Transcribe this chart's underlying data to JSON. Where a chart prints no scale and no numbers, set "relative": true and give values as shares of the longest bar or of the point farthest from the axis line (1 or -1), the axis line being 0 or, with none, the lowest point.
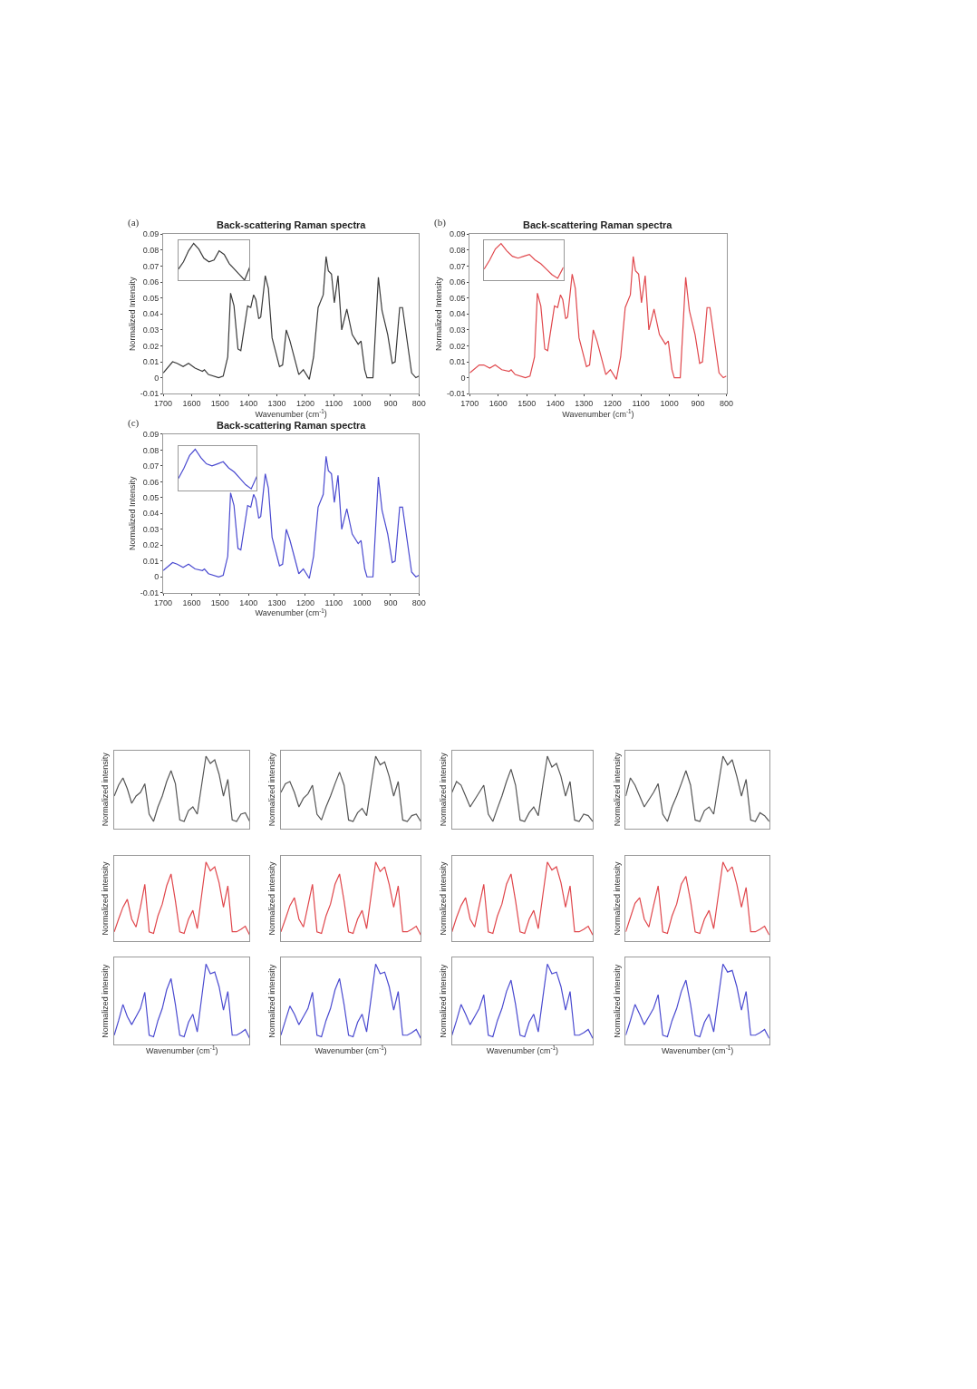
{
  "chart_data": [
    {
      "type": "line",
      "title": "Back-scattering Raman spectra",
      "xlabel": "Wavenumber (cm$^{-1}$)",
      "ylabel": "Normalized Intensity",
      "annotations": [
        "(a)"
      ],
      "color": "#3a3a3a",
      "x": [
        1700,
        1667,
        1651,
        1630,
        1611,
        1588,
        1562,
        1555,
        1541,
        1505,
        1489,
        1473,
        1463,
        1451,
        1437,
        1427,
        1403,
        1392,
        1382,
        1374,
        1364,
        1357,
        1341,
        1330,
        1317,
        1291,
        1280,
        1267,
        1254,
        1223,
        1207,
        1186,
        1171,
        1155,
        1137,
        1127,
        1119,
        1108,
        1098,
        1085,
        1072,
        1054,
        1035,
        1014,
        1004,
        991,
        983,
        962,
        943,
        930,
        910,
        894,
        884,
        868,
        858,
        826,
        811,
        800
      ],
      "values": [
        0.003,
        0.01,
        0.009,
        0.007,
        0.009,
        0.006,
        0.004,
        0.005,
        0.002,
        0.0,
        0.001,
        0.013,
        0.053,
        0.045,
        0.018,
        0.017,
        0.045,
        0.044,
        0.052,
        0.049,
        0.037,
        0.038,
        0.064,
        0.056,
        0.025,
        0.007,
        0.008,
        0.03,
        0.023,
        0.002,
        0.005,
        -0.001,
        0.013,
        0.044,
        0.052,
        0.076,
        0.067,
        0.065,
        0.047,
        0.064,
        0.03,
        0.043,
        0.027,
        0.021,
        0.023,
        0.005,
        0.0,
        0.0,
        0.063,
        0.042,
        0.027,
        0.009,
        0.01,
        0.044,
        0.044,
        0.003,
        0.0,
        0.001
      ],
      "xlim": [
        1700,
        800
      ],
      "xticks": [
        1700,
        1600,
        1500,
        1400,
        1300,
        1200,
        1100,
        1000,
        900,
        800
      ],
      "ylim": [
        -0.01,
        0.09
      ],
      "yticks": [
        -0.01,
        0,
        0.01,
        0.02,
        0.03,
        0.04,
        0.05,
        0.06,
        0.07,
        0.08,
        0.09
      ]
    },
    {
      "type": "line",
      "relative": true,
      "color": "#3a3a3a",
      "categories": [
        null,
        null,
        null,
        null,
        null,
        null,
        null,
        null,
        null,
        null,
        null,
        null,
        null,
        null,
        null
      ],
      "values": [
        0.3,
        0.5,
        0.8,
        1.0,
        0.85,
        0.6,
        0.5,
        0.55,
        0.8,
        0.7,
        0.45,
        0.3,
        0.15,
        0.0,
        0.35
      ]
    },
    {
      "type": "line",
      "title": "Back-scattering Raman spectra",
      "xlabel": "Wavenumber (cm$^{-1}$)",
      "ylabel": "Normalized Intensity",
      "annotations": [
        "(b)"
      ],
      "color": "#e0474c",
      "x": [
        1700,
        1667,
        1651,
        1630,
        1611,
        1588,
        1562,
        1555,
        1541,
        1505,
        1489,
        1473,
        1463,
        1451,
        1437,
        1427,
        1403,
        1392,
        1382,
        1374,
        1364,
        1357,
        1341,
        1330,
        1317,
        1291,
        1280,
        1267,
        1254,
        1223,
        1207,
        1186,
        1171,
        1155,
        1137,
        1127,
        1119,
        1108,
        1098,
        1085,
        1072,
        1054,
        1035,
        1014,
        1004,
        991,
        983,
        962,
        943,
        930,
        910,
        894,
        884,
        868,
        858,
        826,
        811,
        800
      ],
      "values": [
        0.003,
        0.008,
        0.008,
        0.006,
        0.008,
        0.005,
        0.004,
        0.005,
        0.002,
        0.0,
        0.001,
        0.013,
        0.053,
        0.045,
        0.018,
        0.017,
        0.045,
        0.044,
        0.052,
        0.049,
        0.037,
        0.038,
        0.065,
        0.056,
        0.025,
        0.007,
        0.008,
        0.03,
        0.023,
        0.002,
        0.005,
        -0.001,
        0.013,
        0.044,
        0.052,
        0.076,
        0.067,
        0.065,
        0.047,
        0.064,
        0.03,
        0.043,
        0.027,
        0.021,
        0.023,
        0.005,
        0.0,
        0.0,
        0.063,
        0.042,
        0.027,
        0.009,
        0.01,
        0.044,
        0.044,
        0.003,
        0.0,
        0.001
      ],
      "xlim": [
        1700,
        800
      ],
      "xticks": [
        1700,
        1600,
        1500,
        1400,
        1300,
        1200,
        1100,
        1000,
        900,
        800
      ],
      "ylim": [
        -0.01,
        0.09
      ],
      "yticks": [
        -0.01,
        0,
        0.01,
        0.02,
        0.03,
        0.04,
        0.05,
        0.06,
        0.07,
        0.08,
        0.09
      ]
    },
    {
      "type": "line",
      "relative": true,
      "color": "#e0474c",
      "categories": [
        null,
        null,
        null,
        null,
        null,
        null,
        null,
        null,
        null,
        null,
        null,
        null,
        null,
        null,
        null
      ],
      "values": [
        0.3,
        0.55,
        0.85,
        1.0,
        0.8,
        0.65,
        0.6,
        0.65,
        0.7,
        0.55,
        0.45,
        0.3,
        0.15,
        0.05,
        0.35
      ]
    },
    {
      "type": "line",
      "title": "Back-scattering Raman spectra",
      "xlabel": "Wavenumber (cm$^{-1}$)",
      "ylabel": "Normalized Intensity",
      "annotations": [
        "(c)"
      ],
      "color": "#4a4ad0",
      "x": [
        1700,
        1667,
        1651,
        1630,
        1611,
        1588,
        1562,
        1555,
        1541,
        1505,
        1489,
        1473,
        1463,
        1451,
        1437,
        1427,
        1403,
        1392,
        1382,
        1374,
        1364,
        1357,
        1341,
        1330,
        1317,
        1291,
        1280,
        1267,
        1254,
        1223,
        1207,
        1186,
        1171,
        1155,
        1137,
        1127,
        1119,
        1108,
        1098,
        1085,
        1072,
        1054,
        1035,
        1014,
        1004,
        991,
        983,
        962,
        943,
        930,
        910,
        894,
        884,
        868,
        858,
        826,
        811,
        800
      ],
      "values": [
        0.004,
        0.009,
        0.008,
        0.006,
        0.008,
        0.005,
        0.004,
        0.005,
        0.002,
        0.0,
        0.001,
        0.013,
        0.053,
        0.045,
        0.018,
        0.017,
        0.045,
        0.044,
        0.052,
        0.049,
        0.037,
        0.038,
        0.065,
        0.056,
        0.025,
        0.007,
        0.008,
        0.03,
        0.023,
        0.002,
        0.005,
        -0.001,
        0.013,
        0.044,
        0.052,
        0.076,
        0.067,
        0.065,
        0.047,
        0.064,
        0.03,
        0.043,
        0.027,
        0.021,
        0.023,
        0.005,
        0.0,
        0.0,
        0.063,
        0.042,
        0.027,
        0.009,
        0.01,
        0.044,
        0.044,
        0.003,
        0.0,
        0.001
      ],
      "xlim": [
        1700,
        800
      ],
      "xticks": [
        1700,
        1600,
        1500,
        1400,
        1300,
        1200,
        1100,
        1000,
        900,
        800
      ],
      "ylim": [
        -0.01,
        0.09
      ],
      "yticks": [
        -0.01,
        0,
        0.01,
        0.02,
        0.03,
        0.04,
        0.05,
        0.06,
        0.07,
        0.08,
        0.09
      ]
    },
    {
      "type": "line",
      "relative": true,
      "color": "#4a4ad0",
      "categories": [
        null,
        null,
        null,
        null,
        null,
        null,
        null,
        null,
        null,
        null,
        null,
        null,
        null,
        null,
        null
      ],
      "values": [
        0.3,
        0.55,
        0.85,
        1.0,
        0.8,
        0.65,
        0.6,
        0.65,
        0.7,
        0.55,
        0.45,
        0.3,
        0.15,
        0.05,
        0.35
      ]
    },
    {
      "type": "line",
      "relative": true,
      "ylabel": "Normalized intensity",
      "color": "#555555",
      "categories": [
        null,
        null,
        null,
        null,
        null,
        null,
        null,
        null,
        null,
        null,
        null,
        null,
        null,
        null,
        null,
        null,
        null,
        null,
        null,
        null,
        null,
        null,
        null,
        null,
        null,
        null,
        null,
        null,
        null,
        null,
        null,
        null
      ],
      "values": [
        0.45,
        0.6,
        0.7,
        0.55,
        0.35,
        0.45,
        0.5,
        0.62,
        0.2,
        0.1,
        0.3,
        0.45,
        0.65,
        0.8,
        0.62,
        0.12,
        0.1,
        0.25,
        0.3,
        0.2,
        0.6,
        1.0,
        0.9,
        0.95,
        0.75,
        0.45,
        0.68,
        0.12,
        0.1,
        0.2,
        0.22,
        0.1
      ]
    },
    {
      "type": "line",
      "relative": true,
      "ylabel": "Normalized intensity",
      "color": "#555555",
      "categories": [
        null,
        null,
        null,
        null,
        null,
        null,
        null,
        null,
        null,
        null,
        null,
        null,
        null,
        null,
        null,
        null,
        null,
        null,
        null,
        null,
        null,
        null,
        null,
        null,
        null,
        null,
        null,
        null,
        null,
        null,
        null,
        null
      ],
      "values": [
        0.5,
        0.62,
        0.65,
        0.5,
        0.3,
        0.42,
        0.48,
        0.6,
        0.2,
        0.12,
        0.3,
        0.45,
        0.62,
        0.78,
        0.6,
        0.12,
        0.1,
        0.22,
        0.28,
        0.18,
        0.6,
        1.0,
        0.88,
        0.92,
        0.72,
        0.45,
        0.65,
        0.12,
        0.1,
        0.18,
        0.2,
        0.1
      ]
    },
    {
      "type": "line",
      "relative": true,
      "ylabel": "Normalized intensity",
      "color": "#555555",
      "categories": [
        null,
        null,
        null,
        null,
        null,
        null,
        null,
        null,
        null,
        null,
        null,
        null,
        null,
        null,
        null,
        null,
        null,
        null,
        null,
        null,
        null,
        null,
        null,
        null,
        null,
        null,
        null,
        null,
        null,
        null,
        null,
        null
      ],
      "values": [
        0.5,
        0.65,
        0.6,
        0.45,
        0.3,
        0.4,
        0.5,
        0.6,
        0.2,
        0.1,
        0.28,
        0.45,
        0.65,
        0.82,
        0.6,
        0.12,
        0.1,
        0.22,
        0.3,
        0.18,
        0.6,
        1.0,
        0.85,
        0.9,
        0.72,
        0.45,
        0.65,
        0.12,
        0.1,
        0.2,
        0.18,
        0.1
      ]
    },
    {
      "type": "line",
      "relative": true,
      "ylabel": "Normalized intensity",
      "color": "#555555",
      "categories": [
        null,
        null,
        null,
        null,
        null,
        null,
        null,
        null,
        null,
        null,
        null,
        null,
        null,
        null,
        null,
        null,
        null,
        null,
        null,
        null,
        null,
        null,
        null,
        null,
        null,
        null,
        null,
        null,
        null,
        null,
        null,
        null
      ],
      "values": [
        0.45,
        0.7,
        0.6,
        0.45,
        0.3,
        0.4,
        0.5,
        0.62,
        0.2,
        0.1,
        0.3,
        0.45,
        0.62,
        0.8,
        0.6,
        0.12,
        0.1,
        0.25,
        0.3,
        0.2,
        0.6,
        1.0,
        0.88,
        0.95,
        0.72,
        0.45,
        0.68,
        0.12,
        0.1,
        0.22,
        0.18,
        0.1
      ]
    },
    {
      "type": "line",
      "relative": true,
      "ylabel": "Normalized intensity",
      "color": "#e0474c",
      "categories": [
        null,
        null,
        null,
        null,
        null,
        null,
        null,
        null,
        null,
        null,
        null,
        null,
        null,
        null,
        null,
        null,
        null,
        null,
        null,
        null,
        null,
        null,
        null,
        null,
        null,
        null,
        null,
        null,
        null,
        null,
        null,
        null
      ],
      "values": [
        0.12,
        0.28,
        0.43,
        0.53,
        0.28,
        0.18,
        0.43,
        0.72,
        0.12,
        0.1,
        0.32,
        0.47,
        0.7,
        0.85,
        0.51,
        0.12,
        0.1,
        0.28,
        0.39,
        0.16,
        0.58,
        1.0,
        0.89,
        0.94,
        0.74,
        0.43,
        0.7,
        0.12,
        0.12,
        0.15,
        0.19,
        0.08
      ]
    },
    {
      "type": "line",
      "relative": true,
      "ylabel": "Normalized intensity",
      "color": "#e0474c",
      "categories": [
        null,
        null,
        null,
        null,
        null,
        null,
        null,
        null,
        null,
        null,
        null,
        null,
        null,
        null,
        null,
        null,
        null,
        null,
        null,
        null,
        null,
        null,
        null,
        null,
        null,
        null,
        null,
        null,
        null,
        null,
        null,
        null
      ],
      "values": [
        0.12,
        0.28,
        0.45,
        0.55,
        0.28,
        0.18,
        0.45,
        0.72,
        0.12,
        0.1,
        0.32,
        0.47,
        0.72,
        0.85,
        0.51,
        0.12,
        0.1,
        0.28,
        0.39,
        0.16,
        0.58,
        1.0,
        0.88,
        0.94,
        0.72,
        0.43,
        0.7,
        0.12,
        0.12,
        0.15,
        0.19,
        0.08
      ]
    },
    {
      "type": "line",
      "relative": true,
      "ylabel": "Normalized intensity",
      "color": "#e0474c",
      "categories": [
        null,
        null,
        null,
        null,
        null,
        null,
        null,
        null,
        null,
        null,
        null,
        null,
        null,
        null,
        null,
        null,
        null,
        null,
        null,
        null,
        null,
        null,
        null,
        null,
        null,
        null,
        null,
        null,
        null,
        null,
        null,
        null
      ],
      "values": [
        0.12,
        0.3,
        0.45,
        0.55,
        0.28,
        0.18,
        0.45,
        0.72,
        0.12,
        0.1,
        0.32,
        0.47,
        0.72,
        0.85,
        0.51,
        0.12,
        0.1,
        0.28,
        0.39,
        0.16,
        0.58,
        1.0,
        0.9,
        0.94,
        0.74,
        0.43,
        0.7,
        0.12,
        0.12,
        0.15,
        0.19,
        0.08
      ]
    },
    {
      "type": "line",
      "relative": true,
      "ylabel": "Normalized intensity",
      "color": "#e0474c",
      "categories": [
        null,
        null,
        null,
        null,
        null,
        null,
        null,
        null,
        null,
        null,
        null,
        null,
        null,
        null,
        null,
        null,
        null,
        null,
        null,
        null,
        null,
        null,
        null,
        null,
        null,
        null,
        null,
        null,
        null,
        null,
        null,
        null
      ],
      "values": [
        0.12,
        0.3,
        0.48,
        0.55,
        0.28,
        0.18,
        0.45,
        0.7,
        0.12,
        0.1,
        0.32,
        0.47,
        0.72,
        0.82,
        0.51,
        0.12,
        0.1,
        0.28,
        0.39,
        0.16,
        0.58,
        1.0,
        0.88,
        0.94,
        0.72,
        0.43,
        0.68,
        0.12,
        0.12,
        0.15,
        0.19,
        0.08
      ]
    },
    {
      "type": "line",
      "relative": true,
      "ylabel": "Normalized intensity",
      "xlabel": "Wavenumber (cm$^{-1}$)",
      "color": "#4a4ad0",
      "categories": [
        null,
        null,
        null,
        null,
        null,
        null,
        null,
        null,
        null,
        null,
        null,
        null,
        null,
        null,
        null,
        null,
        null,
        null,
        null,
        null,
        null,
        null,
        null,
        null,
        null,
        null,
        null,
        null,
        null,
        null,
        null,
        null
      ],
      "values": [
        0.12,
        0.3,
        0.5,
        0.35,
        0.25,
        0.35,
        0.45,
        0.65,
        0.12,
        0.1,
        0.3,
        0.45,
        0.68,
        0.82,
        0.5,
        0.12,
        0.1,
        0.28,
        0.38,
        0.16,
        0.58,
        1.0,
        0.88,
        0.9,
        0.72,
        0.43,
        0.66,
        0.12,
        0.12,
        0.15,
        0.19,
        0.08
      ]
    },
    {
      "type": "line",
      "relative": true,
      "ylabel": "Normalized intensity",
      "xlabel": "Wavenumber (cm$^{-1}$)",
      "color": "#4a4ad0",
      "categories": [
        null,
        null,
        null,
        null,
        null,
        null,
        null,
        null,
        null,
        null,
        null,
        null,
        null,
        null,
        null,
        null,
        null,
        null,
        null,
        null,
        null,
        null,
        null,
        null,
        null,
        null,
        null,
        null,
        null,
        null,
        null,
        null
      ],
      "values": [
        0.12,
        0.3,
        0.48,
        0.38,
        0.25,
        0.35,
        0.45,
        0.65,
        0.12,
        0.1,
        0.3,
        0.45,
        0.68,
        0.82,
        0.5,
        0.12,
        0.1,
        0.28,
        0.38,
        0.16,
        0.58,
        1.0,
        0.88,
        0.9,
        0.72,
        0.43,
        0.66,
        0.12,
        0.12,
        0.15,
        0.19,
        0.08
      ]
    },
    {
      "type": "line",
      "relative": true,
      "ylabel": "Normalized intensity",
      "xlabel": "Wavenumber (cm$^{-1}$)",
      "color": "#4a4ad0",
      "categories": [
        null,
        null,
        null,
        null,
        null,
        null,
        null,
        null,
        null,
        null,
        null,
        null,
        null,
        null,
        null,
        null,
        null,
        null,
        null,
        null,
        null,
        null,
        null,
        null,
        null,
        null,
        null,
        null,
        null,
        null,
        null,
        null
      ],
      "values": [
        0.12,
        0.3,
        0.5,
        0.38,
        0.25,
        0.35,
        0.45,
        0.62,
        0.12,
        0.1,
        0.3,
        0.45,
        0.66,
        0.8,
        0.5,
        0.12,
        0.1,
        0.28,
        0.38,
        0.16,
        0.58,
        1.0,
        0.88,
        0.9,
        0.72,
        0.43,
        0.66,
        0.12,
        0.12,
        0.15,
        0.19,
        0.08
      ]
    },
    {
      "type": "line",
      "relative": true,
      "ylabel": "Normalized intensity",
      "xlabel": "Wavenumber (cm$^{-1}$)",
      "color": "#4a4ad0",
      "categories": [
        null,
        null,
        null,
        null,
        null,
        null,
        null,
        null,
        null,
        null,
        null,
        null,
        null,
        null,
        null,
        null,
        null,
        null,
        null,
        null,
        null,
        null,
        null,
        null,
        null,
        null,
        null,
        null,
        null,
        null,
        null,
        null
      ],
      "values": [
        0.12,
        0.3,
        0.5,
        0.38,
        0.25,
        0.35,
        0.45,
        0.62,
        0.12,
        0.1,
        0.3,
        0.45,
        0.66,
        0.8,
        0.5,
        0.12,
        0.1,
        0.28,
        0.38,
        0.16,
        0.58,
        1.0,
        0.9,
        0.92,
        0.72,
        0.43,
        0.66,
        0.12,
        0.12,
        0.15,
        0.19,
        0.08
      ]
    }
  ]
}
